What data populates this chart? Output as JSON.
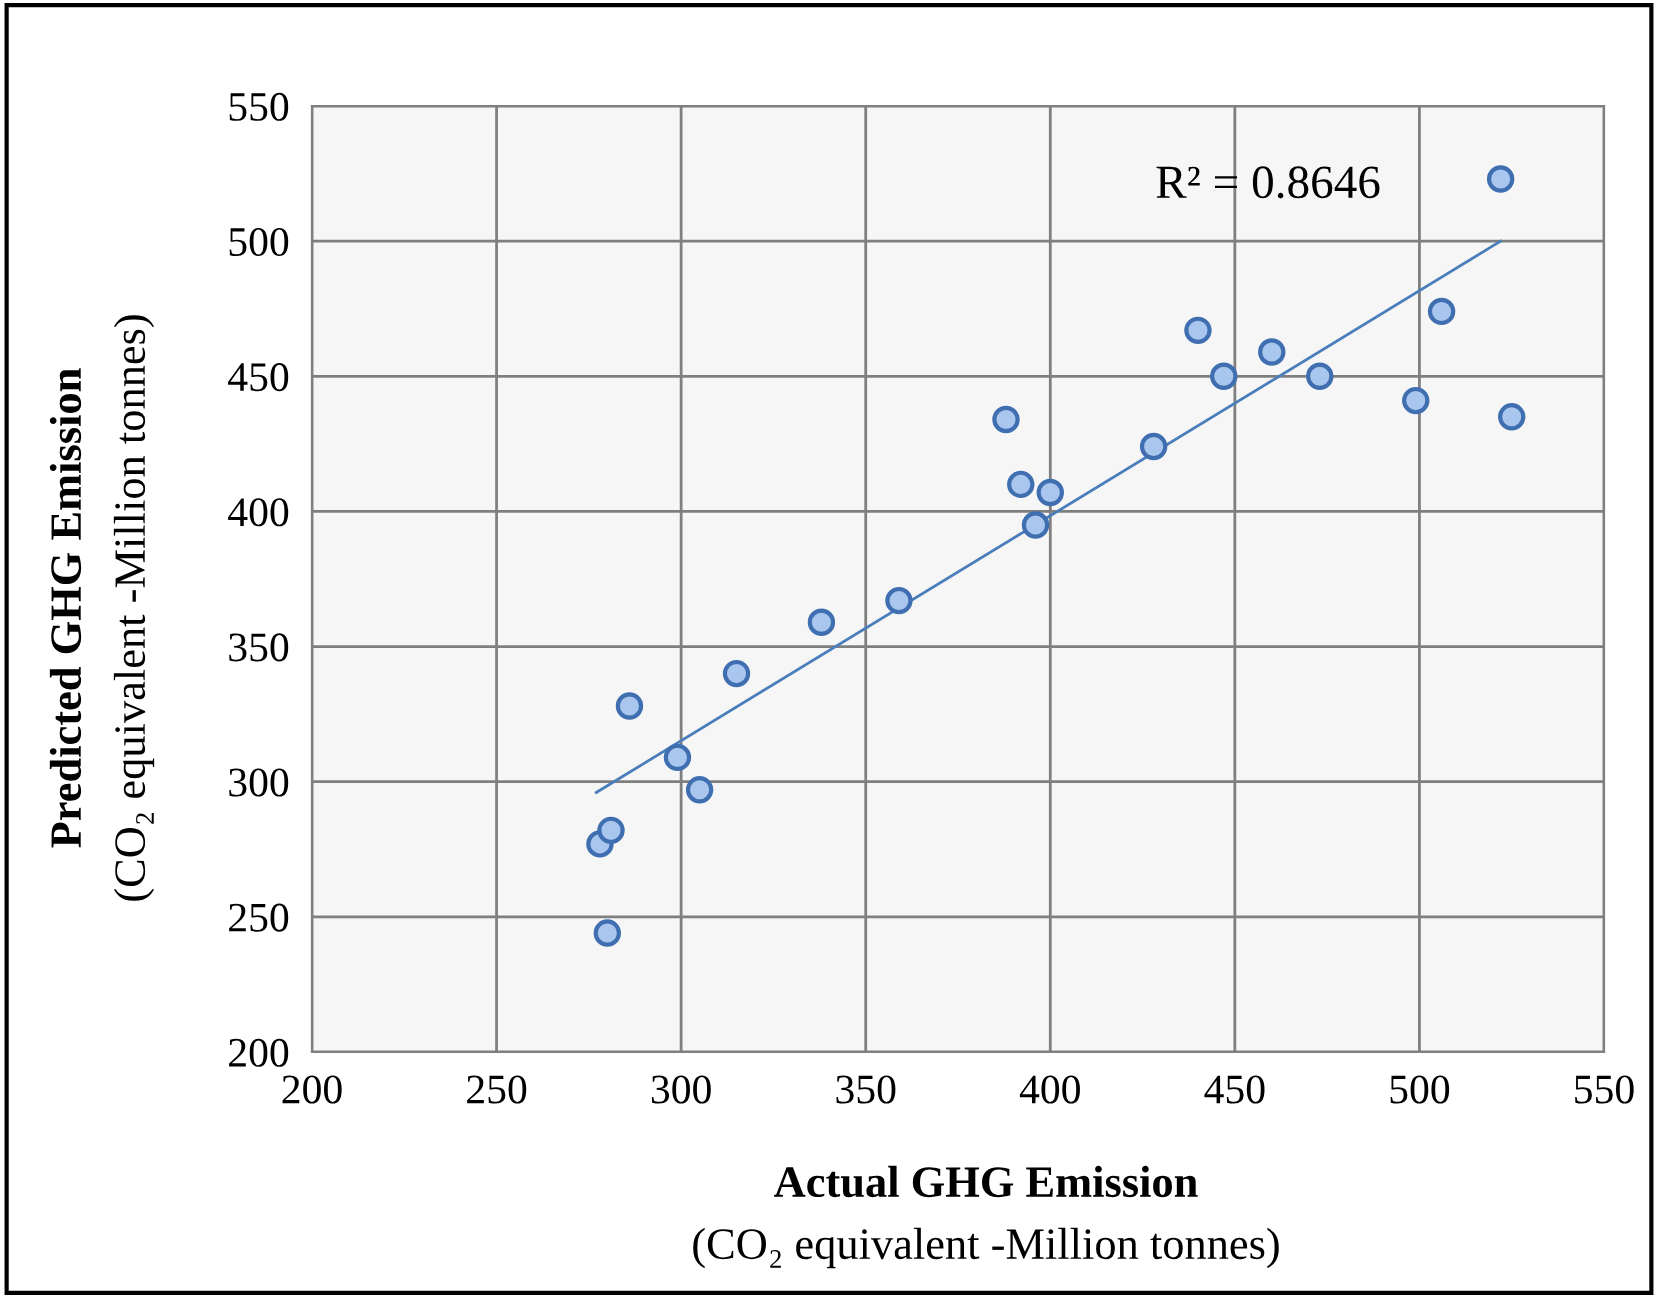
{
  "chart_data": {
    "type": "scatter",
    "xlabel": "Actual GHG Emission\n(CO₂ equivalent -Million tonnes)",
    "ylabel": "Predicted GHG Emission\n(CO₂ equivalent -Million tonnes)",
    "annotations": [
      "R² = 0.8646"
    ],
    "xlim": [
      200,
      550
    ],
    "xticks": [
      200,
      250,
      300,
      350,
      400,
      450,
      500,
      550
    ],
    "ylim": [
      200,
      550
    ],
    "yticks": [
      200,
      250,
      300,
      350,
      400,
      450,
      500,
      550
    ],
    "grid": true,
    "legend": false,
    "marker": "circle",
    "series": [
      {
        "color": "#a9c6ee",
        "x": [
          280,
          278,
          281,
          286,
          299,
          305,
          315,
          338,
          359,
          388,
          392,
          396,
          400,
          428,
          440,
          447,
          460,
          473,
          499,
          506,
          522,
          525
        ],
        "values": [
          244,
          277,
          282,
          328,
          309,
          297,
          340,
          359,
          367,
          434,
          410,
          395,
          407,
          424,
          467,
          450,
          459,
          450,
          441,
          474,
          523,
          435
        ]
      },
      {
        "type": "line",
        "color": "#4a7ebb",
        "line_style": "solid",
        "marker": "none",
        "x": [
          277,
          522
        ],
        "values": [
          296,
          500
        ]
      }
    ]
  }
}
